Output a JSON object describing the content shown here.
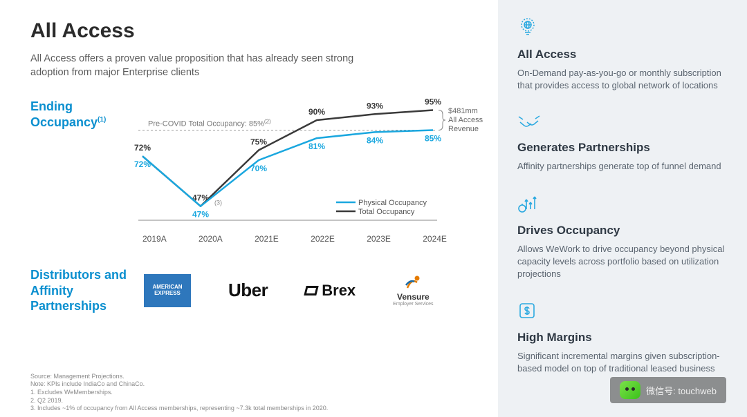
{
  "title": "All Access",
  "subtitle": "All Access offers a proven value proposition that has already seen strong adoption from major Enterprise clients",
  "chart": {
    "label": "Ending Occupancy",
    "label_superscript": "(1)",
    "type": "line",
    "categories": [
      "2019A",
      "2020A",
      "2021E",
      "2022E",
      "2023E",
      "2024E"
    ],
    "reference_line": {
      "label": "Pre-COVID Total Occupancy: 85%",
      "superscript": "(2)",
      "value": 85,
      "color": "#9a9a9a",
      "dash": "3,3"
    },
    "series": {
      "physical": {
        "name": "Physical Occupancy",
        "color": "#1aa7df",
        "values": [
          72,
          47,
          70,
          81,
          84,
          85
        ]
      },
      "total": {
        "name": "Total Occupancy",
        "color": "#3a3a3a",
        "values": [
          72,
          47,
          75,
          90,
          93,
          95
        ]
      }
    },
    "annotation": {
      "lines": [
        "$481mm",
        "All Access",
        "Revenue"
      ],
      "color": "#666666",
      "fontsize": 11
    },
    "ylim": [
      40,
      100
    ],
    "axis_color": "#888888",
    "label_color": "#555555",
    "line_width": 2.5,
    "label_fontsize": 12,
    "legend_fontsize": 11,
    "footnote_marker_2020": "(3)"
  },
  "partners": {
    "label": "Distributors and Affinity Partnerships",
    "logos": {
      "amex": "AMERICAN EXPRESS",
      "uber": "Uber",
      "brex": "Brex",
      "vensure": "Vensure",
      "vensure_sub": "Employer Services"
    }
  },
  "footnotes": [
    "Source: Management Projections.",
    "Note: KPIs include IndiaCo and ChinaCo.",
    "1.    Excludes WeMemberships.",
    "2.    Q2 2019.",
    "3.    Includes ~1% of occupancy from All Access memberships, representing ~7.3k total memberships in 2020."
  ],
  "sidebar": [
    {
      "icon": "globe",
      "head": "All Access",
      "body": "On-Demand pay-as-you-go or monthly subscription that provides access to global network of locations"
    },
    {
      "icon": "hands",
      "head": "Generates Partnerships",
      "body": "Affinity partnerships generate top of funnel demand"
    },
    {
      "icon": "arrows",
      "head": "Drives Occupancy",
      "body": "Allows WeWork to drive occupancy beyond physical capacity levels across portfolio based on utilization projections"
    },
    {
      "icon": "dollar",
      "head": "High Margins",
      "body": "Significant incremental margins given subscription-based model on top of traditional leased business"
    }
  ],
  "watermark": "微信号: touchweb",
  "colors": {
    "accent": "#0a8fcf",
    "sidebar_icon": "#2aa9e0",
    "sidebar_bg": "#eef1f4",
    "text_muted": "#5b6570"
  }
}
